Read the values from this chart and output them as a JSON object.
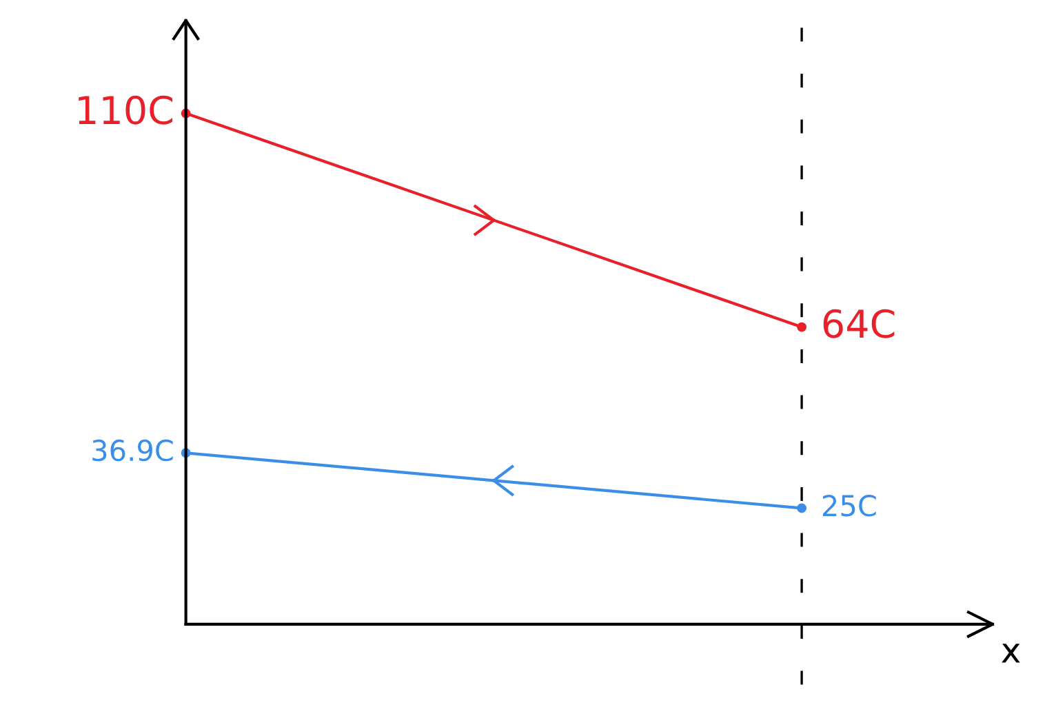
{
  "chart_data": {
    "type": "line",
    "xlabel": "x",
    "categories": [
      null,
      null
    ],
    "ylim": [
      0,
      130
    ],
    "legend": false,
    "marker": "circle",
    "line_style": "solid",
    "series": [
      {
        "color": "#e8202a",
        "values": [
          110,
          64
        ],
        "value_labels": [
          "110C",
          "64C"
        ]
      },
      {
        "color": "#3a8ee8",
        "values": [
          36.9,
          25
        ],
        "value_labels": [
          "36.9C",
          "25C"
        ]
      }
    ],
    "ref_lines": [
      {
        "axis": "x",
        "color": "#000000",
        "line_style": "dashed"
      }
    ]
  }
}
